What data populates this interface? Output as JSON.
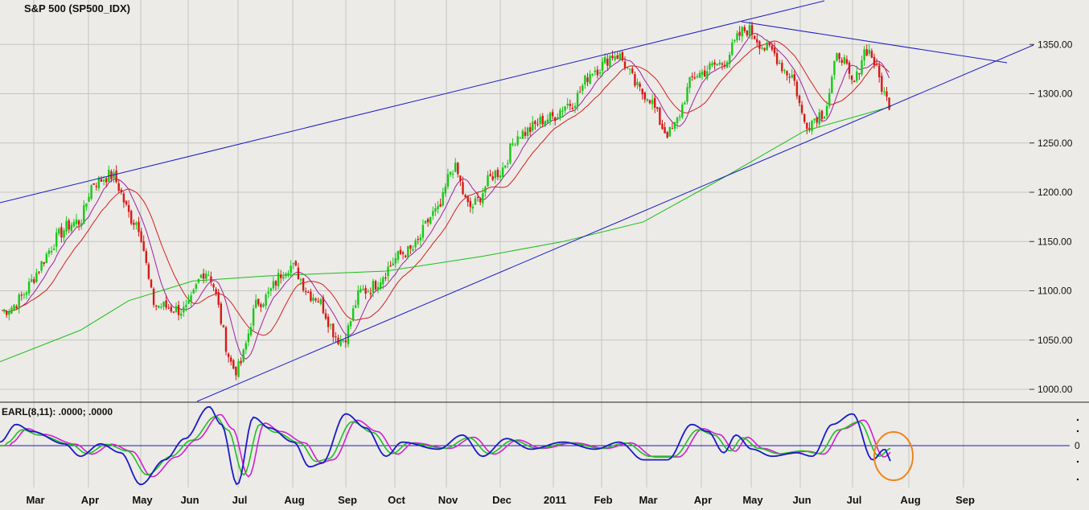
{
  "chart_data": [
    {
      "type": "candlestick",
      "title": "S&P 500 (SP500_IDX)",
      "ylim": [
        975,
        1375
      ],
      "y_ticks": [
        "1000.00",
        "1050.00",
        "1100.00",
        "1150.00",
        "1200.00",
        "1250.00",
        "1300.00",
        "1350.00"
      ],
      "x_ticks": [
        "Mar",
        "Apr",
        "May",
        "Jun",
        "Jul",
        "Aug",
        "Sep",
        "Oct",
        "Nov",
        "Dec",
        "2011",
        "Feb",
        "Mar",
        "Apr",
        "May",
        "Jun",
        "Jul",
        "Aug",
        "Sep"
      ],
      "grid": true,
      "colors": {
        "up": "#18c818",
        "down": "#d81818",
        "trend_lines": "#1a1ac8",
        "short_ma": "#a020a0",
        "mid_ma": "#d42020",
        "long_ma": "#18c018"
      },
      "close_keypoints": [
        [
          "Mar",
          1080
        ],
        [
          "Apr",
          1170
        ],
        [
          "Apr",
          1210
        ],
        [
          "Apr",
          1217
        ],
        [
          "May",
          1170
        ],
        [
          "May",
          1085
        ],
        [
          "Jun",
          1080
        ],
        [
          "Jun",
          1120
        ],
        [
          "Jul",
          1020
        ],
        [
          "Jul",
          1090
        ],
        [
          "Aug",
          1125
        ],
        [
          "Aug",
          1095
        ],
        [
          "Sep",
          1050
        ],
        [
          "Sep",
          1100
        ],
        [
          "Oct",
          1140
        ],
        [
          "Nov",
          1180
        ],
        [
          "Nov",
          1225
        ],
        [
          "Nov",
          1185
        ],
        [
          "Dec",
          1220
        ],
        [
          "Dec",
          1260
        ],
        [
          "2011",
          1275
        ],
        [
          "2011",
          1290
        ],
        [
          "Feb",
          1325
        ],
        [
          "Feb",
          1340
        ],
        [
          "Mar",
          1300
        ],
        [
          "Mar",
          1260
        ],
        [
          "Apr",
          1320
        ],
        [
          "Apr",
          1330
        ],
        [
          "May",
          1365
        ],
        [
          "May",
          1345
        ],
        [
          "Jun",
          1320
        ],
        [
          "Jun",
          1270
        ],
        [
          "Jun",
          1280
        ],
        [
          "Jul",
          1340
        ],
        [
          "Jul",
          1310
        ],
        [
          "Jul",
          1345
        ],
        [
          "Jul",
          1290
        ]
      ],
      "moving_averages": [
        "short (purple)",
        "medium (red)",
        "long (green)"
      ],
      "trend_lines": [
        "upper channel",
        "lower channel",
        "descending resistance"
      ]
    },
    {
      "type": "line",
      "title": "EARL(8,11): .0000; .0000",
      "y_ticks": [
        "0"
      ],
      "series_colors": [
        "#1a1ac8",
        "#d020d0",
        "#20c020"
      ],
      "zero_line": 0,
      "annotation": "orange circle around latest downturn"
    }
  ]
}
